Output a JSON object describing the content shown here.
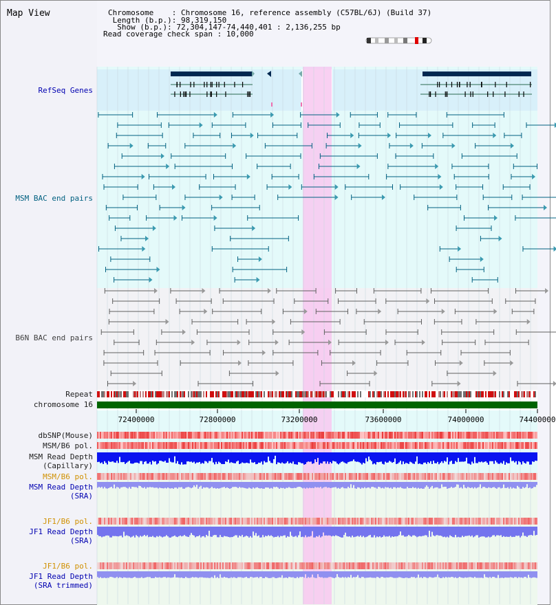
{
  "title": "Map View",
  "info": {
    "chromosome_label": "Chromosome    ",
    "chromosome_value": "Chromosome 16, reference assembly (C57BL/6J) (Build 37)",
    "length_label": " Length (b.p.)",
    "length_value": "98,319,150",
    "show_label": "  Show (b.p.)",
    "show_value": "72,304,147-74,440,401 : 2,136,255 bp",
    "coverage_label": "Read coverage check span",
    "coverage_value": "10,000"
  },
  "tracks": {
    "refseq": "RefSeq Genes",
    "msm_bac": "MSM BAC end pairs",
    "b6n_bac": "B6N BAC end pairs",
    "repeat": "Repeat",
    "chromosome": "chromosome 16",
    "dbsnp": "dbSNP(Mouse)",
    "msm_b6_pol_1": "MSM/B6 pol.",
    "msm_depth_cap_1": "MSM Read Depth",
    "msm_depth_cap_2": "(Capillary)",
    "msm_b6_pol_2": "MSM/B6 pol.",
    "msm_depth_sra_1": "MSM Read Depth",
    "msm_depth_sra_2": "(SRA)",
    "jf1_b6_pol_1": "JF1/B6 pol.",
    "jf1_depth_sra_1": "JF1 Read Depth",
    "jf1_depth_sra_2": "(SRA)",
    "jf1_b6_pol_2": "JF1/B6 pol.",
    "jf1_depth_trim_1": "JF1 Read Depth",
    "jf1_depth_trim_2": "(SRA trimmed)"
  },
  "axis": {
    "ticks": [
      "72400000",
      "72800000",
      "73200000",
      "73600000",
      "74000000",
      "74400000"
    ]
  },
  "colors": {
    "refseq_bg": "#d8f0fa",
    "msm_bg": "#e2fbfb",
    "b6n_bg": "#f2f2f5",
    "highlight": "#f8c8f0",
    "gene": "#002850",
    "msm_feature": "#006080",
    "b6n_feature": "#606060",
    "chromosome_bar": "#006400",
    "depth_capillary": "#0a14f0",
    "depth_sra": "#9090f0",
    "pol": "#f07070"
  }
}
